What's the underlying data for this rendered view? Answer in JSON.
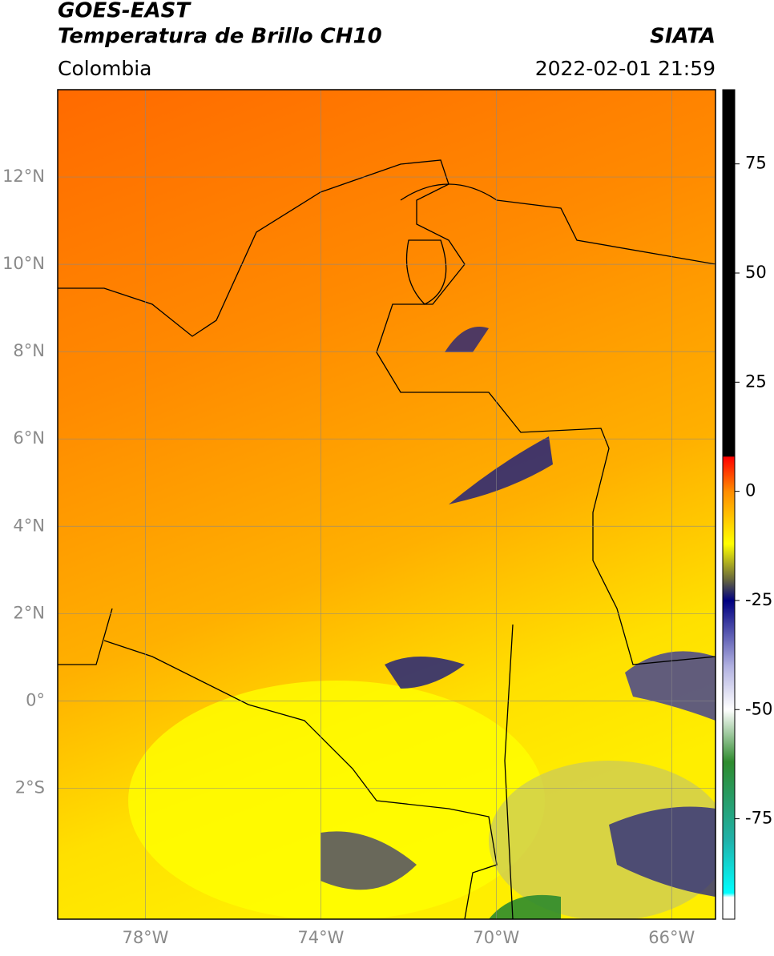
{
  "header": {
    "title": "GOES-EAST",
    "product": "Temperatura de Brillo CH10",
    "source": "SIATA",
    "region": "Colombia",
    "datetime": "2022-02-01 21:59"
  },
  "map": {
    "lonlim": [
      -80,
      -65
    ],
    "latlim": [
      -5,
      14
    ],
    "lon_ticks": [
      {
        "value": -78,
        "label": "78°W"
      },
      {
        "value": -74,
        "label": "74°W"
      },
      {
        "value": -70,
        "label": "70°W"
      },
      {
        "value": -66,
        "label": "66°W"
      }
    ],
    "lat_ticks": [
      {
        "value": 12,
        "label": "12°N"
      },
      {
        "value": 10,
        "label": "10°N"
      },
      {
        "value": 8,
        "label": "8°N"
      },
      {
        "value": 6,
        "label": "6°N"
      },
      {
        "value": 4,
        "label": "4°N"
      },
      {
        "value": 2,
        "label": "2°N"
      },
      {
        "value": 0,
        "label": "0°"
      },
      {
        "value": -2,
        "label": "2°S"
      }
    ],
    "grid": true
  },
  "colorbar": {
    "lim": [
      -98,
      92
    ],
    "ticks": [
      75,
      50,
      25,
      0,
      -25,
      -50,
      -75
    ],
    "colormap": [
      {
        "value": 92,
        "color": "#000000"
      },
      {
        "value": 8,
        "color": "#000000"
      },
      {
        "value": 7.9,
        "color": "#ff0000"
      },
      {
        "value": 0,
        "color": "#ff8c00"
      },
      {
        "value": -12,
        "color": "#ffff00"
      },
      {
        "value": -20,
        "color": "#6b6b3a"
      },
      {
        "value": -25,
        "color": "#000080"
      },
      {
        "value": -40,
        "color": "#b0b0e0"
      },
      {
        "value": -50,
        "color": "#ffffff"
      },
      {
        "value": -62,
        "color": "#2e8b2e"
      },
      {
        "value": -80,
        "color": "#20b2aa"
      },
      {
        "value": -92,
        "color": "#00ffff"
      },
      {
        "value": -93,
        "color": "#ffffff"
      },
      {
        "value": -98,
        "color": "#ffffff"
      }
    ]
  }
}
